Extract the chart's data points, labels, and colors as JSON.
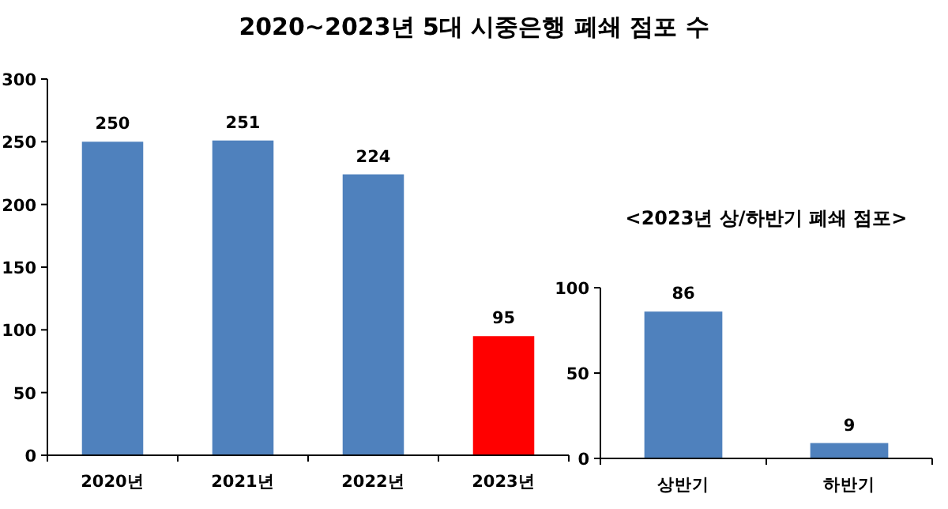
{
  "chart_data": [
    {
      "type": "bar",
      "title": "2020~2023년 5대 시중은행 폐쇄 점포 수",
      "categories": [
        "2020년",
        "2021년",
        "2022년",
        "2023년"
      ],
      "values": [
        250,
        251,
        224,
        95
      ],
      "colors": [
        "#4f81bd",
        "#4f81bd",
        "#4f81bd",
        "#ff0000"
      ],
      "ylim": [
        0,
        300
      ],
      "yticks": [
        0,
        50,
        100,
        150,
        200,
        250,
        300
      ],
      "data_labels": true,
      "grid": false
    },
    {
      "type": "bar",
      "title": "<2023년 상/하반기 폐쇄 점포>",
      "categories": [
        "상반기",
        "하반기"
      ],
      "values": [
        86,
        9
      ],
      "colors": [
        "#4f81bd",
        "#4f81bd"
      ],
      "ylim": [
        0,
        100
      ],
      "yticks": [
        0,
        50,
        100
      ],
      "data_labels": true,
      "grid": false
    }
  ]
}
